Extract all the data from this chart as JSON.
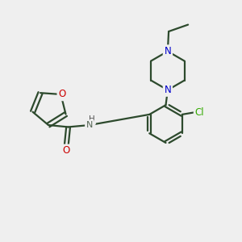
{
  "background_color": "#efefef",
  "bond_color": "#2d4a2d",
  "atom_colors": {
    "O": "#cc0000",
    "N": "#0000cc",
    "Cl": "#33aa00",
    "H": "#555555",
    "C": "#2d4a2d"
  },
  "figsize": [
    3.0,
    3.0
  ],
  "dpi": 100
}
